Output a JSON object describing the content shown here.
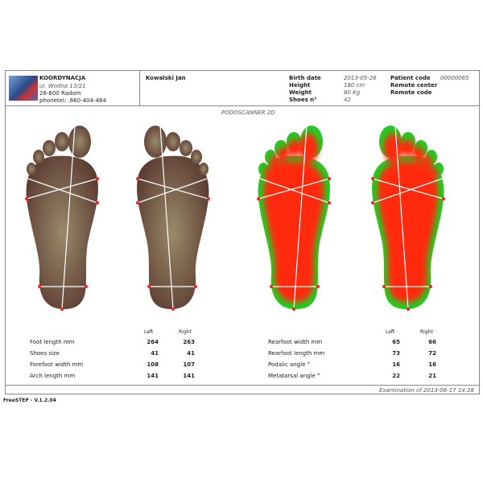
{
  "clinic": {
    "name": "KOORDYNACJA",
    "street": "ul. Wodna 13/21",
    "city": "26-600 Radom",
    "phone": "phonetel: .660-404-464"
  },
  "patient": {
    "name": "Kowalski Jan"
  },
  "info": [
    {
      "label": "Birth date",
      "value": "2013-05-26"
    },
    {
      "label": "Height",
      "value": "180 cm"
    },
    {
      "label": "Weight",
      "value": "80 Kg"
    },
    {
      "label": "Shoes n°",
      "value": "42"
    }
  ],
  "codes": [
    {
      "label": "Patient code",
      "value": "00000065"
    },
    {
      "label": "Remote center",
      "value": ""
    },
    {
      "label": "Remote code",
      "value": ""
    }
  ],
  "section_title": "PODOSCANNER 2D",
  "col_left": "Left",
  "col_right": "Right",
  "measures_left": [
    {
      "label": "Foot length mm",
      "left": "264",
      "right": "263"
    },
    {
      "label": "Shoes size",
      "left": "41",
      "right": "41"
    },
    {
      "label": "Forefoot width mm",
      "left": "108",
      "right": "107"
    },
    {
      "label": "Arch length mm",
      "left": "141",
      "right": "141"
    }
  ],
  "measures_right": [
    {
      "label": "Rearfoot width mm",
      "left": "65",
      "right": "66"
    },
    {
      "label": "Rearfoot length mm",
      "left": "73",
      "right": "72"
    },
    {
      "label": "Podalic angle °",
      "left": "16",
      "right": "16"
    },
    {
      "label": "Metatarsal angle °",
      "left": "22",
      "right": "21"
    }
  ],
  "examination": "Examination of 2013-06-17 14:28",
  "version": "FreeSTEP - V.1.2.04",
  "colors": {
    "skin": "#7a6450",
    "heat_hot": "#ff2a10",
    "heat_cool": "#22cc22",
    "markers": "#ff2020"
  }
}
